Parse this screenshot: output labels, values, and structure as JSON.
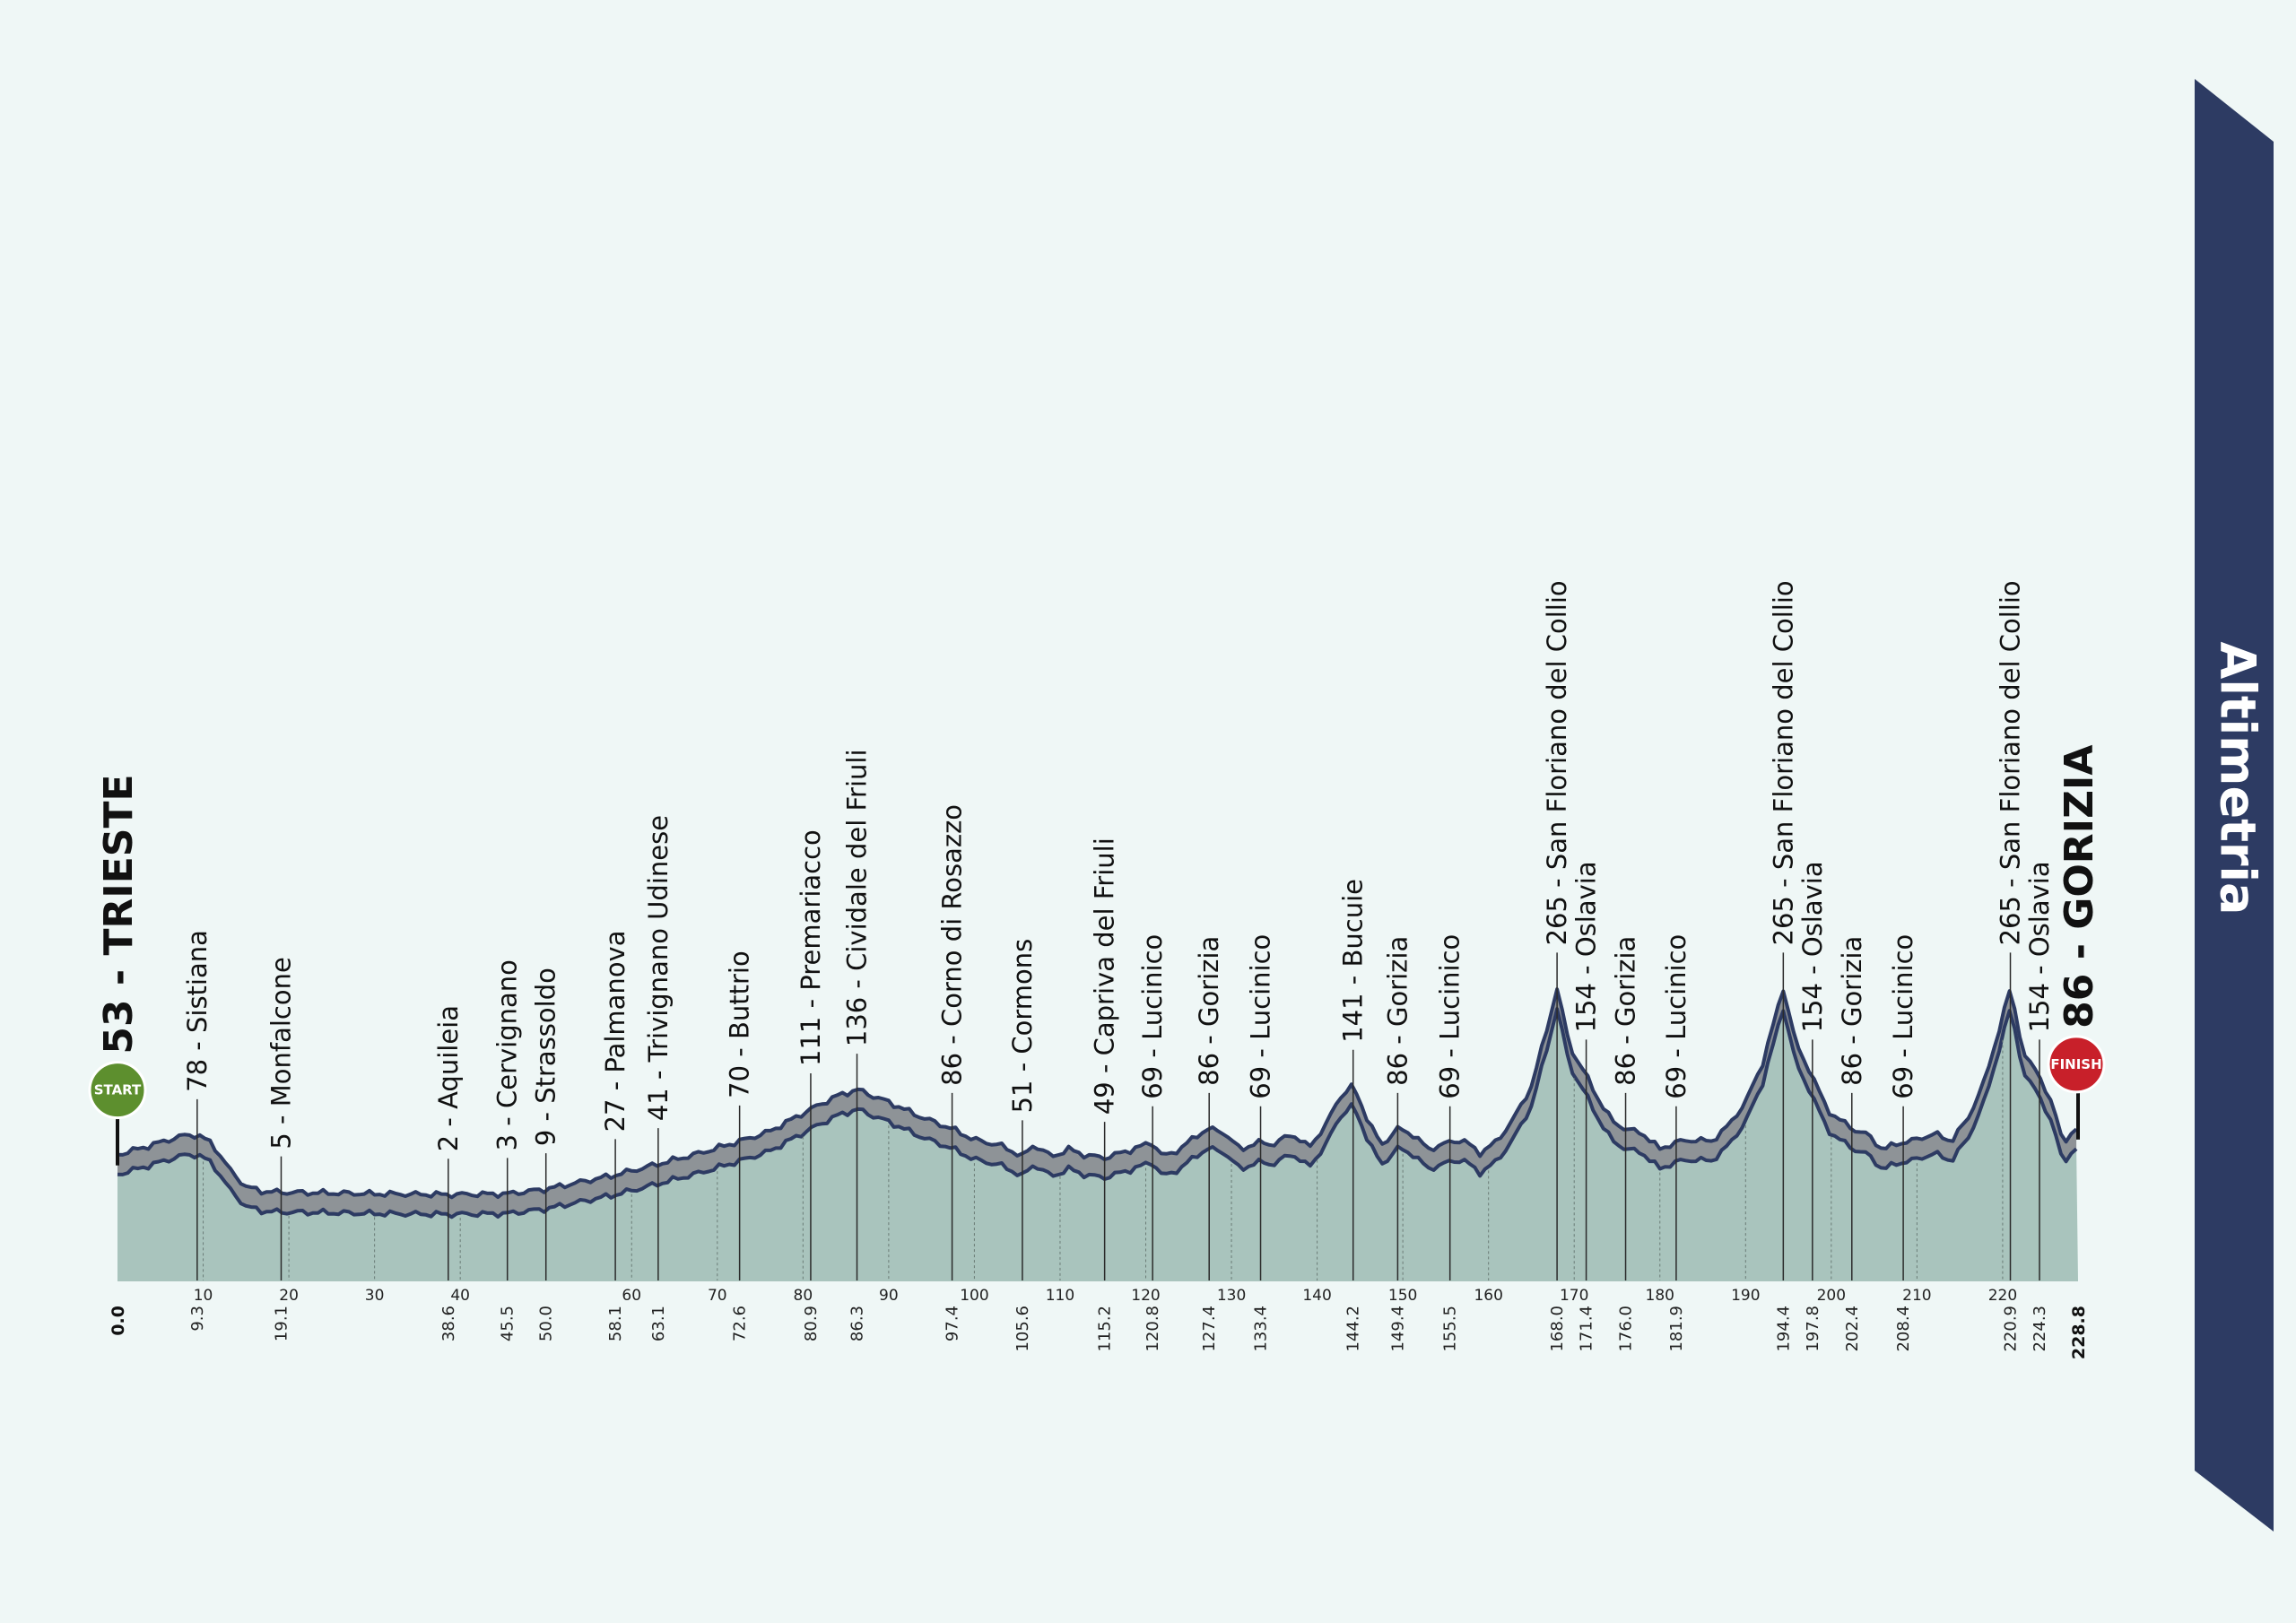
{
  "banner": {
    "title": "Altimetria",
    "color": "#2d3b63"
  },
  "badges": {
    "start": "START",
    "finish": "FINISH",
    "start_color": "#5d8f2e",
    "finish_color": "#c8202a"
  },
  "start_label": "53 - TRIESTE",
  "finish_label": "86 - GORIZIA",
  "colors": {
    "fill": "#a9c4bd",
    "band": "#8e9397",
    "outline": "#2d3b63",
    "background": "#eff7f6"
  },
  "chart_data": {
    "type": "area",
    "title": "",
    "xlabel": "",
    "ylabel": "",
    "xlim": [
      0,
      228.8
    ],
    "ylim": [
      0,
      300
    ],
    "km_ticks": [
      10,
      20,
      30,
      40,
      60,
      70,
      80,
      90,
      100,
      110,
      120,
      130,
      140,
      150,
      160,
      170,
      180,
      190,
      200,
      210,
      220
    ],
    "start": {
      "km": 0.0,
      "km_label": "0.0",
      "altitude": 53,
      "name": "TRIESTE"
    },
    "finish": {
      "km": 228.8,
      "km_label": "228.8",
      "altitude": 86,
      "name": "GORIZIA"
    },
    "waypoints": [
      {
        "km": 9.3,
        "km_label": "9.3",
        "altitude": 78,
        "name": "Sistiana",
        "label": "78 - Sistiana"
      },
      {
        "km": 19.1,
        "km_label": "19.1",
        "altitude": 5,
        "name": "Monfalcone",
        "label": "5 - Monfalcone"
      },
      {
        "km": 38.6,
        "km_label": "38.6",
        "altitude": 2,
        "name": "Aquileia",
        "label": "2 - Aquileia"
      },
      {
        "km": 45.5,
        "km_label": "45.5",
        "altitude": 3,
        "name": "Cervignano",
        "label": "3 - Cervignano"
      },
      {
        "km": 50.0,
        "km_label": "50.0",
        "altitude": 9,
        "name": "Strassoldo",
        "label": "9 - Strassoldo"
      },
      {
        "km": 58.1,
        "km_label": "58.1",
        "altitude": 27,
        "name": "Palmanova",
        "label": "27 - Palmanova"
      },
      {
        "km": 63.1,
        "km_label": "63.1",
        "altitude": 41,
        "name": "Trivignano Udinese",
        "label": "41 - Trivignano Udinese"
      },
      {
        "km": 72.6,
        "km_label": "72.6",
        "altitude": 70,
        "name": "Buttrio",
        "label": "70 - Buttrio"
      },
      {
        "km": 80.9,
        "km_label": "80.9",
        "altitude": 111,
        "name": "Premariacco",
        "label": "111 - Premariacco"
      },
      {
        "km": 86.3,
        "km_label": "86.3",
        "altitude": 136,
        "name": "Cividale del Friuli",
        "label": "136 - Cividale del Friuli"
      },
      {
        "km": 97.4,
        "km_label": "97.4",
        "altitude": 86,
        "name": "Corno di Rosazzo",
        "label": "86 - Corno di Rosazzo"
      },
      {
        "km": 105.6,
        "km_label": "105.6",
        "altitude": 51,
        "name": "Cormons",
        "label": "51 - Cormons"
      },
      {
        "km": 115.2,
        "km_label": "115.2",
        "altitude": 49,
        "name": "Capriva del Friuli",
        "label": "49 - Capriva del Friuli"
      },
      {
        "km": 120.8,
        "km_label": "120.8",
        "altitude": 69,
        "name": "Lucinico",
        "label": "69 - Lucinico"
      },
      {
        "km": 127.4,
        "km_label": "127.4",
        "altitude": 86,
        "name": "Gorizia",
        "label": "86 - Gorizia"
      },
      {
        "km": 133.4,
        "km_label": "133.4",
        "altitude": 69,
        "name": "Lucinico",
        "label": "69 - Lucinico"
      },
      {
        "km": 144.2,
        "km_label": "144.2",
        "altitude": 141,
        "name": "Bucuie",
        "label": "141 - Bucuie"
      },
      {
        "km": 149.4,
        "km_label": "149.4",
        "altitude": 86,
        "name": "Gorizia",
        "label": "86 - Gorizia"
      },
      {
        "km": 155.5,
        "km_label": "155.5",
        "altitude": 69,
        "name": "Lucinico",
        "label": "69 - Lucinico"
      },
      {
        "km": 168.0,
        "km_label": "168.0",
        "altitude": 265,
        "name": "San Floriano del Collio",
        "label": "265 - San Floriano del Collio"
      },
      {
        "km": 171.4,
        "km_label": "171.4",
        "altitude": 154,
        "name": "Oslavia",
        "label": "154 - Oslavia"
      },
      {
        "km": 176.0,
        "km_label": "176.0",
        "altitude": 86,
        "name": "Gorizia",
        "label": "86 - Gorizia"
      },
      {
        "km": 181.9,
        "km_label": "181.9",
        "altitude": 69,
        "name": "Lucinico",
        "label": "69 - Lucinico"
      },
      {
        "km": 194.4,
        "km_label": "194.4",
        "altitude": 265,
        "name": "San Floriano del Collio",
        "label": "265 - San Floriano del Collio"
      },
      {
        "km": 197.8,
        "km_label": "197.8",
        "altitude": 154,
        "name": "Oslavia",
        "label": "154 - Oslavia"
      },
      {
        "km": 202.4,
        "km_label": "202.4",
        "altitude": 86,
        "name": "Gorizia",
        "label": "86 - Gorizia"
      },
      {
        "km": 208.4,
        "km_label": "208.4",
        "altitude": 69,
        "name": "Lucinico",
        "label": "69 - Lucinico"
      },
      {
        "km": 220.9,
        "km_label": "220.9",
        "altitude": 265,
        "name": "San Floriano del Collio",
        "label": "265 - San Floriano del Collio"
      },
      {
        "km": 224.3,
        "km_label": "224.3",
        "altitude": 154,
        "name": "Oslavia",
        "label": "154 - Oslavia"
      }
    ],
    "profile": [
      [
        0,
        53
      ],
      [
        3,
        62
      ],
      [
        6,
        72
      ],
      [
        8,
        78
      ],
      [
        9.3,
        78
      ],
      [
        11,
        68
      ],
      [
        13,
        35
      ],
      [
        15,
        12
      ],
      [
        17,
        6
      ],
      [
        19.1,
        5
      ],
      [
        25,
        4
      ],
      [
        30,
        3
      ],
      [
        38.6,
        2
      ],
      [
        45.5,
        3
      ],
      [
        50.0,
        9
      ],
      [
        54,
        18
      ],
      [
        58.1,
        27
      ],
      [
        63.1,
        41
      ],
      [
        68,
        55
      ],
      [
        72.6,
        70
      ],
      [
        76,
        82
      ],
      [
        80.9,
        111
      ],
      [
        84,
        128
      ],
      [
        86.3,
        136
      ],
      [
        90,
        120
      ],
      [
        94,
        100
      ],
      [
        97.4,
        86
      ],
      [
        100,
        72
      ],
      [
        103,
        65
      ],
      [
        105.6,
        51
      ],
      [
        107,
        66
      ],
      [
        109,
        50
      ],
      [
        111,
        60
      ],
      [
        113,
        52
      ],
      [
        115.2,
        49
      ],
      [
        118,
        58
      ],
      [
        120.8,
        69
      ],
      [
        122,
        50
      ],
      [
        124,
        60
      ],
      [
        126,
        78
      ],
      [
        127.4,
        86
      ],
      [
        129,
        82
      ],
      [
        131,
        60
      ],
      [
        133.4,
        69
      ],
      [
        135,
        66
      ],
      [
        137,
        80
      ],
      [
        139,
        62
      ],
      [
        141,
        90
      ],
      [
        142.5,
        125
      ],
      [
        144.2,
        141
      ],
      [
        146,
        95
      ],
      [
        147.5,
        65
      ],
      [
        149.4,
        86
      ],
      [
        151,
        80
      ],
      [
        153,
        60
      ],
      [
        155.5,
        69
      ],
      [
        157,
        72
      ],
      [
        159,
        55
      ],
      [
        161,
        70
      ],
      [
        163,
        100
      ],
      [
        165,
        140
      ],
      [
        166.5,
        200
      ],
      [
        168.0,
        265
      ],
      [
        169.5,
        190
      ],
      [
        171.4,
        154
      ],
      [
        173,
        120
      ],
      [
        174.5,
        95
      ],
      [
        176.0,
        86
      ],
      [
        178,
        80
      ],
      [
        180,
        60
      ],
      [
        181.9,
        69
      ],
      [
        184,
        72
      ],
      [
        186,
        70
      ],
      [
        188,
        90
      ],
      [
        190,
        120
      ],
      [
        192,
        170
      ],
      [
        194.4,
        265
      ],
      [
        196,
        190
      ],
      [
        197.8,
        154
      ],
      [
        199.5,
        110
      ],
      [
        202.4,
        86
      ],
      [
        204,
        80
      ],
      [
        206,
        60
      ],
      [
        208.4,
        69
      ],
      [
        210,
        72
      ],
      [
        212,
        80
      ],
      [
        214,
        70
      ],
      [
        216,
        100
      ],
      [
        218,
        150
      ],
      [
        220.9,
        265
      ],
      [
        222.5,
        180
      ],
      [
        224.3,
        154
      ],
      [
        226,
        110
      ],
      [
        227,
        70
      ],
      [
        228.8,
        86
      ]
    ]
  }
}
